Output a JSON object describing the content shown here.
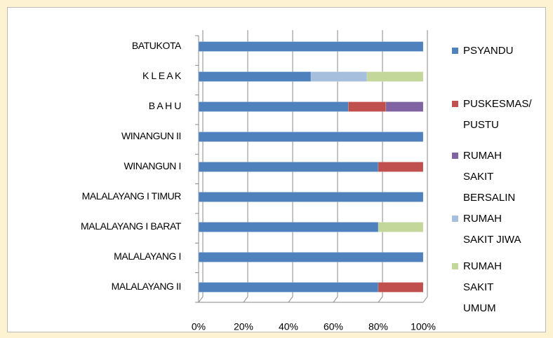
{
  "chart_data": {
    "type": "stacked-bar-horizontal",
    "categories": [
      "BATUKOTA",
      "K L E A K",
      "B A H U",
      "WINANGUN  II",
      "WINANGUN I",
      "MALALAYANG I TIMUR",
      "MALALAYANG I BARAT",
      "MALALAYANG I",
      "MALALAYANG II"
    ],
    "series": [
      {
        "name": "PSYANDU",
        "color": "#4f81bd",
        "values": [
          100,
          50,
          66.7,
          100,
          80,
          100,
          80,
          100,
          80
        ]
      },
      {
        "name": "PUSKESMAS/ PUSTU",
        "color": "#c0504d",
        "values": [
          0,
          0,
          16.7,
          0,
          20,
          0,
          0,
          0,
          20
        ]
      },
      {
        "name": "RUMAH SAKIT BERSALIN",
        "color": "#8064a2",
        "values": [
          0,
          0,
          16.6,
          0,
          0,
          0,
          0,
          0,
          0
        ]
      },
      {
        "name": "RUMAH SAKIT JIWA",
        "color": "#a5bfdd",
        "values": [
          0,
          25,
          0,
          0,
          0,
          0,
          0,
          0,
          0
        ]
      },
      {
        "name": "RUMAH SAKIT UMUM",
        "color": "#c4d79b",
        "values": [
          0,
          25,
          0,
          0,
          0,
          0,
          20,
          0,
          0
        ]
      }
    ],
    "xlim": [
      0,
      100
    ],
    "xticks": [
      {
        "value": 0,
        "label": "0%"
      },
      {
        "value": 20,
        "label": "20%"
      },
      {
        "value": 40,
        "label": "40%"
      },
      {
        "value": 60,
        "label": "60%"
      },
      {
        "value": 80,
        "label": "80%"
      },
      {
        "value": 100,
        "label": "100%"
      }
    ],
    "grid": true,
    "legend": "right"
  }
}
